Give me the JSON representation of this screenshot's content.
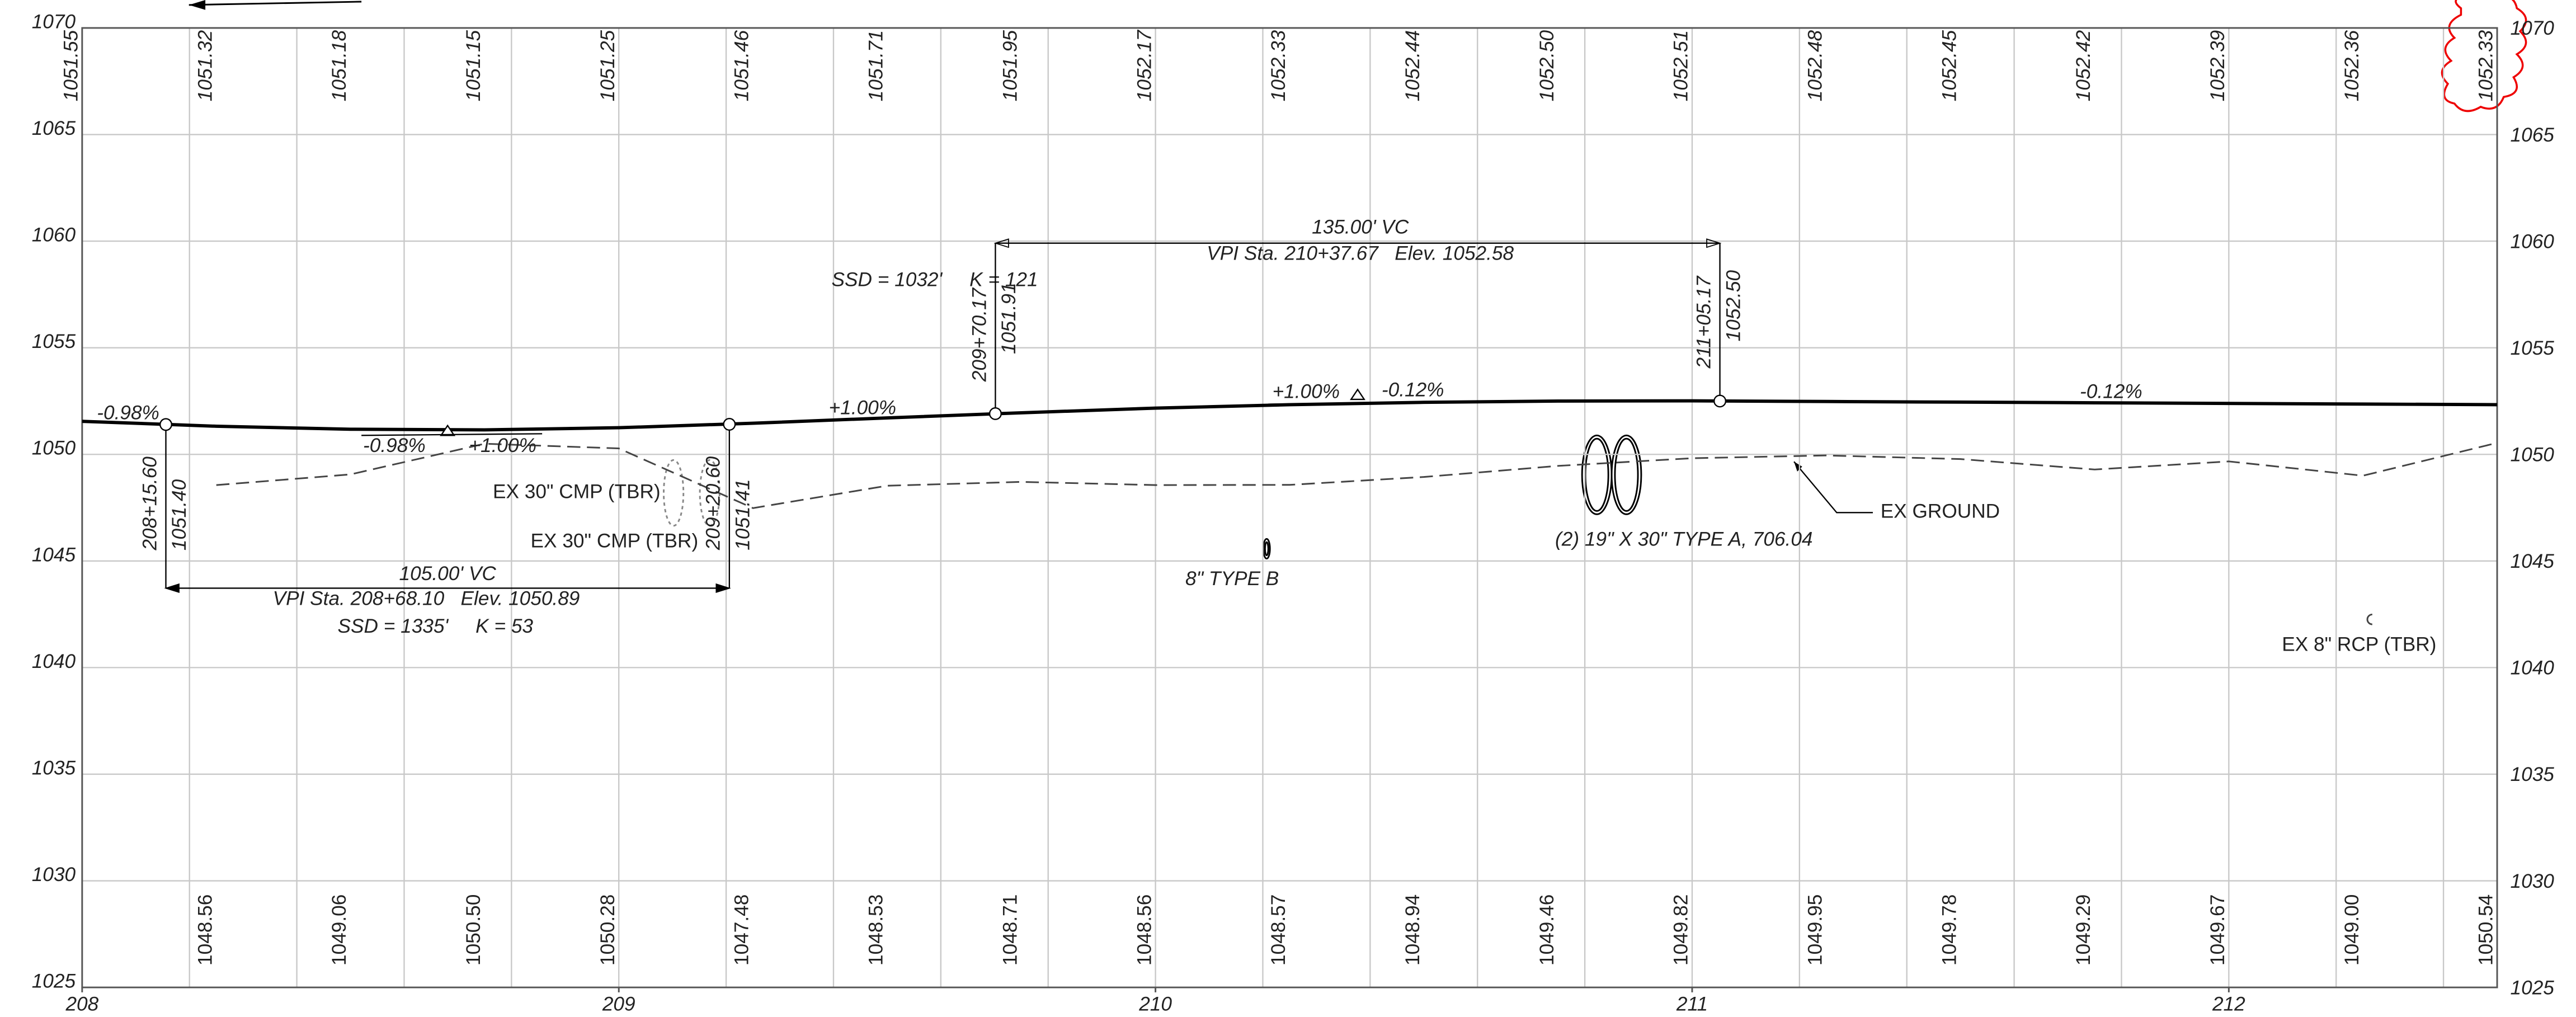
{
  "chart_data": {
    "type": "line",
    "xlim": [
      208,
      212.5
    ],
    "ylim": [
      1025,
      1070
    ],
    "xticks": [
      208,
      209,
      210,
      211,
      212
    ],
    "yticks": [
      1025,
      1030,
      1035,
      1040,
      1045,
      1050,
      1055,
      1060,
      1065,
      1070
    ],
    "xgrid": [
      208.2,
      208.4,
      208.6,
      208.8,
      209,
      209.2,
      209.4,
      209.6,
      209.8,
      210,
      210.2,
      210.4,
      210.6,
      210.8,
      211,
      211.2,
      211.4,
      211.6,
      211.8,
      212,
      212.2,
      212.4
    ],
    "grid": true,
    "series": [
      {
        "color": "#000000",
        "x": [
          208,
          208.25,
          208.5,
          208.75,
          209,
          209.25,
          209.5,
          209.75,
          210,
          210.25,
          210.5,
          210.75,
          211,
          211.25,
          211.5,
          211.75,
          212,
          212.25,
          212.5
        ],
        "values": [
          1051.55,
          1051.32,
          1051.18,
          1051.15,
          1051.25,
          1051.46,
          1051.71,
          1051.95,
          1052.17,
          1052.33,
          1052.44,
          1052.5,
          1052.51,
          1052.48,
          1052.45,
          1052.42,
          1052.39,
          1052.36,
          1052.33
        ],
        "value_labels": [
          "1051.55",
          "1051.32",
          "1051.18",
          "1051.15",
          "1051.25",
          "1051.46",
          "1051.71",
          "1051.95",
          "1052.17",
          "1052.33",
          "1052.44",
          "1052.50",
          "1052.51",
          "1052.48",
          "1052.45",
          "1052.42",
          "1052.39",
          "1052.36",
          "1052.33"
        ]
      },
      {
        "color": "#444444",
        "x": [
          208.25,
          208.5,
          208.75,
          209,
          209.25,
          209.5,
          209.75,
          210,
          210.25,
          210.5,
          210.75,
          211,
          211.25,
          211.5,
          211.75,
          212,
          212.25,
          212.5
        ],
        "values": [
          1048.56,
          1049.06,
          1050.5,
          1050.28,
          1047.48,
          1048.53,
          1048.71,
          1048.56,
          1048.57,
          1048.94,
          1049.46,
          1049.82,
          1049.95,
          1049.78,
          1049.29,
          1049.67,
          1049,
          1050.54
        ],
        "value_labels": [
          "1048.56",
          "1049.06",
          "1050.50",
          "1050.28",
          "1047.48",
          "1048.53",
          "1048.71",
          "1048.56",
          "1048.57",
          "1048.94",
          "1049.46",
          "1049.82",
          "1049.95",
          "1049.78",
          "1049.29",
          "1049.67",
          "1049.00",
          "1050.54"
        ]
      }
    ],
    "points": [
      {
        "x": 208.156,
        "value": 1051.4,
        "station": "208+15.60",
        "elev": "1051.40"
      },
      {
        "x": 209.206,
        "value": 1051.41,
        "station": "209+20.60",
        "elev": "1051.41"
      },
      {
        "x": 209.7017,
        "value": 1051.91,
        "station": "209+70.17",
        "elev": "1051.91"
      },
      {
        "x": 211.0517,
        "value": 1052.5,
        "station": "211+05.17",
        "elev": "1052.50"
      }
    ],
    "vertical_curves": [
      {
        "start": 208.156,
        "end": 209.206,
        "vpi_x": 208.681,
        "vpi": 1050.89,
        "length": "105.00' VC",
        "vpi_text": "VPI Sta. 208+68.10   Elev. 1050.89",
        "sight": "SSD = 1335'     K = 53"
      },
      {
        "start": 209.7017,
        "end": 211.0517,
        "vpi_x": 210.3767,
        "vpi": 1052.58,
        "length": "135.00' VC",
        "vpi_text": "VPI Sta. 210+37.67   Elev. 1052.58",
        "sight": "SSD = 1032'     K = 121"
      }
    ],
    "grades": [
      "-0.98%",
      "-0.98%",
      "+1.00%",
      "+1.00%",
      "+1.00%",
      "-0.12%",
      "-0.12%"
    ],
    "annotations": [
      "EX 30\" CMP (TBR)",
      "EX 30\" CMP (TBR)",
      "8\" TYPE B",
      "(2) 19\" X 30\" TYPE A, 706.04",
      "EX GROUND",
      "EX 8\" RCP (TBR)"
    ]
  }
}
